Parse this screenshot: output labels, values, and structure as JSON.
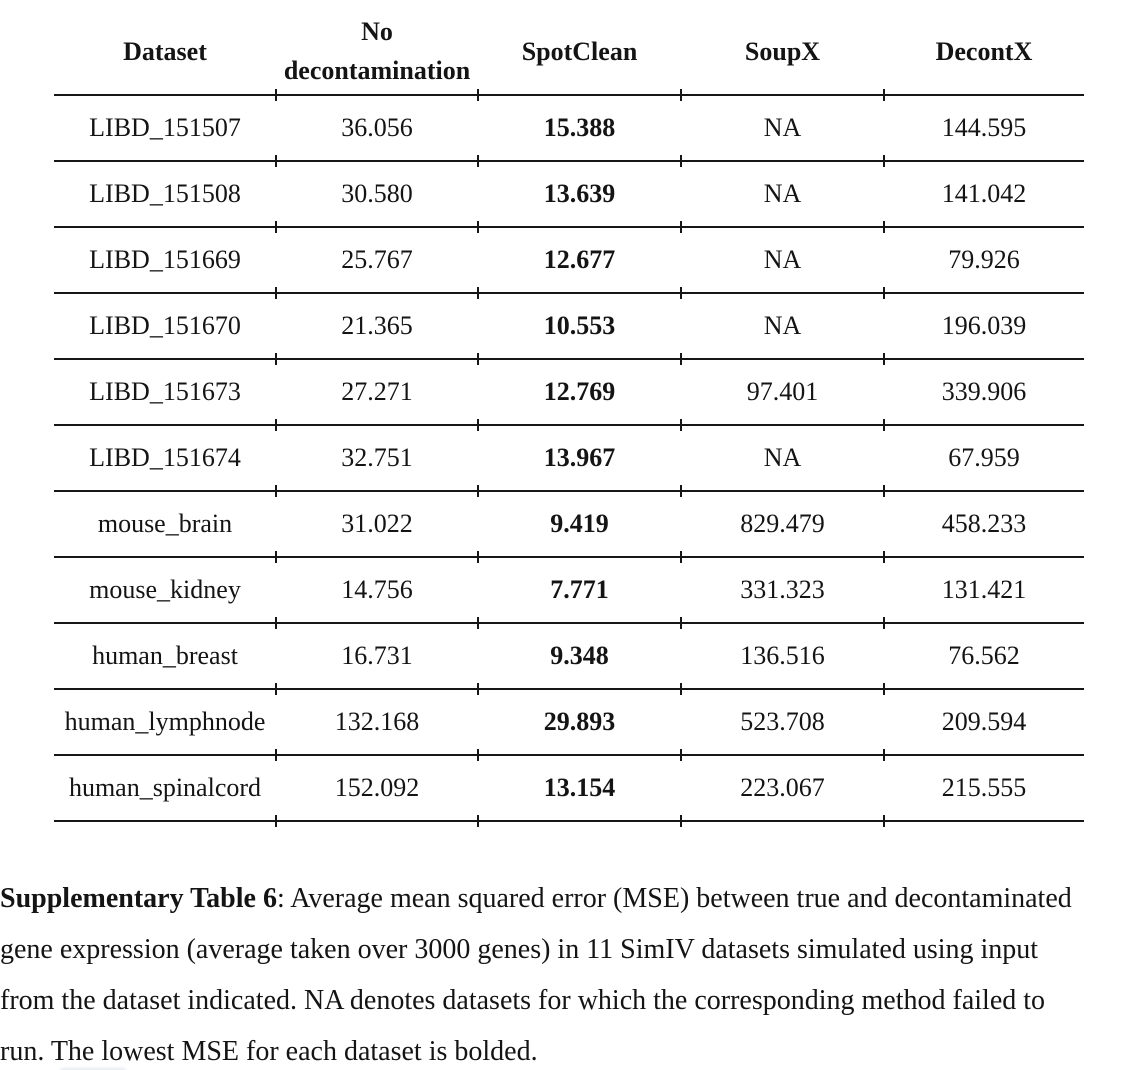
{
  "colors": {
    "background": "#ffffff",
    "text": "#141414",
    "rule": "#161616"
  },
  "table": {
    "columns": [
      "Dataset",
      "No decontamination",
      "SpotClean",
      "SoupX",
      "DecontX"
    ],
    "bold_column_label": "SpotClean",
    "rows": [
      [
        "LIBD_151507",
        "36.056",
        "15.388",
        "NA",
        "144.595"
      ],
      [
        "LIBD_151508",
        "30.580",
        "13.639",
        "NA",
        "141.042"
      ],
      [
        "LIBD_151669",
        "25.767",
        "12.677",
        "NA",
        "79.926"
      ],
      [
        "LIBD_151670",
        "21.365",
        "10.553",
        "NA",
        "196.039"
      ],
      [
        "LIBD_151673",
        "27.271",
        "12.769",
        "97.401",
        "339.906"
      ],
      [
        "LIBD_151674",
        "32.751",
        "13.967",
        "NA",
        "67.959"
      ],
      [
        "mouse_brain",
        "31.022",
        "9.419",
        "829.479",
        "458.233"
      ],
      [
        "mouse_kidney",
        "14.756",
        "7.771",
        "331.323",
        "131.421"
      ],
      [
        "human_breast",
        "16.731",
        "9.348",
        "136.516",
        "76.562"
      ],
      [
        "human_lymphnode",
        "132.168",
        "29.893",
        "523.708",
        "209.594"
      ],
      [
        "human_spinalcord",
        "152.092",
        "13.154",
        "223.067",
        "215.555"
      ]
    ]
  },
  "caption": {
    "bold_label": "Supplementary Table 6",
    "line1_rest": ": Average mean squared error (MSE) between true and decontaminated",
    "line2": "gene expression (average taken over 3000 genes) in 11 SimIV datasets simulated using input",
    "line3": "from the dataset indicated. NA denotes datasets for which the corresponding method failed to",
    "line4": "run. The lowest MSE for each dataset is bolded."
  }
}
